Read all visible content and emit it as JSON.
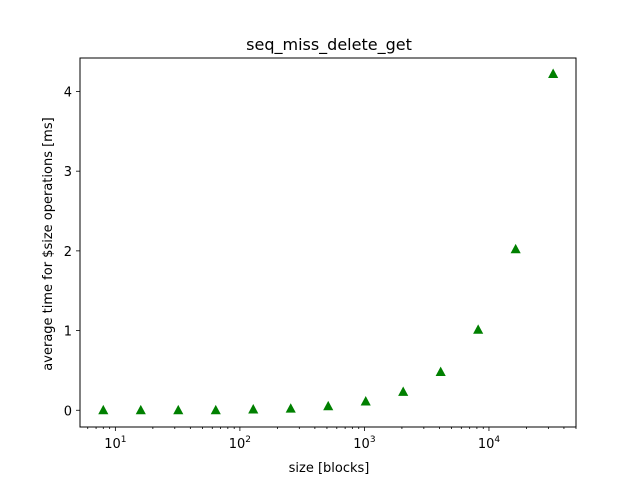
{
  "chart_data": {
    "type": "scatter",
    "title": "seq_miss_delete_get",
    "xlabel": "size [blocks]",
    "ylabel": "average time for $size operations [ms]",
    "x_scale": "log",
    "xlim": [
      5.2,
      50000
    ],
    "ylim": [
      -0.21,
      4.42
    ],
    "x_ticks": [
      {
        "value": 10,
        "base": "10",
        "exp": "1"
      },
      {
        "value": 100,
        "base": "10",
        "exp": "2"
      },
      {
        "value": 1000,
        "base": "10",
        "exp": "3"
      },
      {
        "value": 10000,
        "base": "10",
        "exp": "4"
      }
    ],
    "y_ticks": [
      {
        "value": 0,
        "label": "0"
      },
      {
        "value": 1,
        "label": "1"
      },
      {
        "value": 2,
        "label": "2"
      },
      {
        "value": 3,
        "label": "3"
      },
      {
        "value": 4,
        "label": "4"
      }
    ],
    "grid": false,
    "marker": "triangle",
    "color": "#008000",
    "series": [
      {
        "x": [
          8,
          16,
          32,
          64,
          128,
          256,
          512,
          1024,
          2048,
          4096,
          8192,
          16384,
          32768
        ],
        "y": [
          0.0,
          0.0,
          0.0,
          0.0,
          0.01,
          0.02,
          0.05,
          0.11,
          0.23,
          0.48,
          1.01,
          2.02,
          4.22
        ]
      }
    ]
  }
}
